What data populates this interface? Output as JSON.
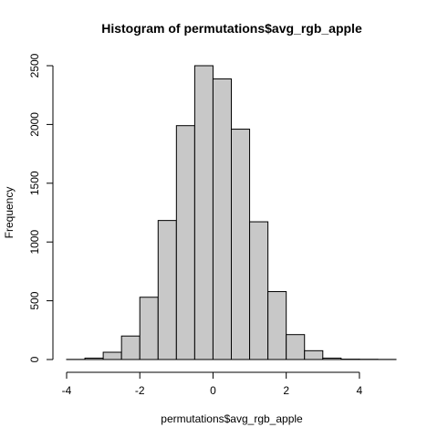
{
  "chart_data": {
    "type": "bar",
    "title": "Histogram of permutations$avg_rgb_apple",
    "xlabel": "permutations$avg_rgb_apple",
    "ylabel": "Frequency",
    "bins": [
      {
        "x0": -4.0,
        "x1": -3.5,
        "count": 1
      },
      {
        "x0": -3.5,
        "x1": -3.0,
        "count": 12
      },
      {
        "x0": -3.0,
        "x1": -2.5,
        "count": 62
      },
      {
        "x0": -2.5,
        "x1": -2.0,
        "count": 200
      },
      {
        "x0": -2.0,
        "x1": -1.5,
        "count": 530
      },
      {
        "x0": -1.5,
        "x1": -1.0,
        "count": 1183
      },
      {
        "x0": -1.0,
        "x1": -0.5,
        "count": 1990
      },
      {
        "x0": -0.5,
        "x1": 0.0,
        "count": 2500
      },
      {
        "x0": 0.0,
        "x1": 0.5,
        "count": 2388
      },
      {
        "x0": 0.5,
        "x1": 1.0,
        "count": 1960
      },
      {
        "x0": 1.0,
        "x1": 1.5,
        "count": 1172
      },
      {
        "x0": 1.5,
        "x1": 2.0,
        "count": 578
      },
      {
        "x0": 2.0,
        "x1": 2.5,
        "count": 212
      },
      {
        "x0": 2.5,
        "x1": 3.0,
        "count": 75
      },
      {
        "x0": 3.0,
        "x1": 3.5,
        "count": 12
      },
      {
        "x0": 3.5,
        "x1": 4.0,
        "count": 3
      },
      {
        "x0": 4.0,
        "x1": 4.5,
        "count": 2
      },
      {
        "x0": 4.5,
        "x1": 5.0,
        "count": 1
      }
    ],
    "xlim": [
      -4,
      5
    ],
    "ylim": [
      0,
      2500
    ],
    "xticks": [
      -4,
      -2,
      0,
      2,
      4
    ],
    "yticks": [
      0,
      500,
      1000,
      1500,
      2000,
      2500
    ],
    "grid": false,
    "legend": "none",
    "bar_fill": "#c8c8c8",
    "bar_stroke": "#000000"
  }
}
